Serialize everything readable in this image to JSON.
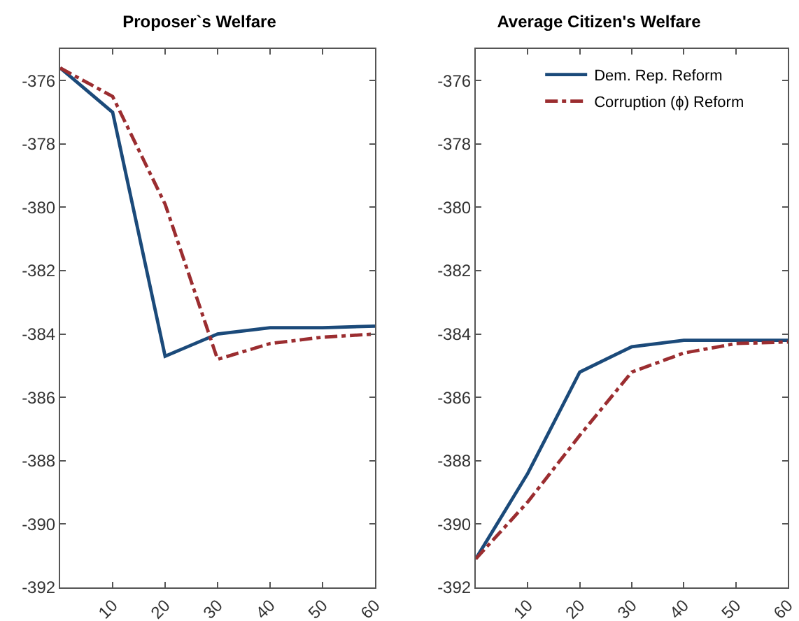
{
  "chart_data": [
    {
      "type": "line",
      "title": "Proposer`s Welfare",
      "x": [
        0,
        10,
        20,
        30,
        40,
        50,
        60
      ],
      "series": [
        {
          "color": "#1b4a7a",
          "line_style": "solid",
          "values": [
            -375.6,
            -377.0,
            -384.7,
            -384.0,
            -383.8,
            -383.8,
            -383.75
          ]
        },
        {
          "color": "#9b2d30",
          "line_style": "dashdot",
          "values": [
            -375.6,
            -376.5,
            -379.9,
            -384.8,
            -384.3,
            -384.1,
            -384.0
          ]
        }
      ],
      "xlim": [
        0,
        60
      ],
      "xticks": [
        10,
        20,
        30,
        40,
        50,
        60
      ],
      "ylim": [
        -392,
        -375
      ],
      "yticks": [
        -392,
        -390,
        -388,
        -386,
        -384,
        -382,
        -380,
        -378,
        -376
      ],
      "grid": false,
      "legend": false
    },
    {
      "type": "line",
      "title": "Average Citizen's Welfare",
      "x": [
        0,
        10,
        20,
        30,
        40,
        50,
        60
      ],
      "series": [
        {
          "name": "Dem. Rep. Reform",
          "color": "#1b4a7a",
          "line_style": "solid",
          "values": [
            -391.1,
            -388.4,
            -385.2,
            -384.4,
            -384.2,
            -384.2,
            -384.2
          ]
        },
        {
          "name": "Corruption (ϕ) Reform",
          "color": "#9b2d30",
          "line_style": "dashdot",
          "values": [
            -391.1,
            -389.3,
            -387.2,
            -385.2,
            -384.6,
            -384.3,
            -384.25
          ]
        }
      ],
      "xlim": [
        0,
        60
      ],
      "xticks": [
        10,
        20,
        30,
        40,
        50,
        60
      ],
      "ylim": [
        -392,
        -375
      ],
      "yticks": [
        -392,
        -390,
        -388,
        -386,
        -384,
        -382,
        -380,
        -378,
        -376
      ],
      "grid": false,
      "legend": "top right"
    }
  ]
}
